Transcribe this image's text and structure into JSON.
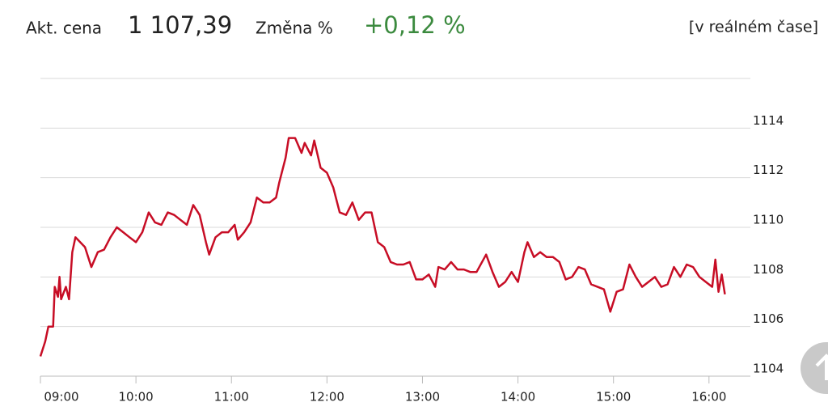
{
  "header": {
    "price_label": "Akt. cena",
    "price": "1 107,39",
    "change_label": "Změna %",
    "change": "+0,12 %",
    "realtime": "[v reálném čase]"
  },
  "chart_data": {
    "type": "line",
    "color": "#c70d25",
    "grid": true,
    "x": [
      540,
      543,
      545,
      548,
      549,
      551,
      552,
      553,
      556,
      558,
      560,
      562,
      565,
      568,
      572,
      576,
      580,
      584,
      588,
      592,
      596,
      600,
      604,
      608,
      612,
      616,
      620,
      624,
      628,
      632,
      636,
      640,
      644,
      646,
      650,
      654,
      658,
      662,
      664,
      668,
      672,
      676,
      680,
      684,
      688,
      690,
      694,
      696,
      700,
      704,
      706,
      710,
      712,
      716,
      720,
      724,
      728,
      732,
      736,
      740,
      744,
      748,
      752,
      756,
      760,
      764,
      768,
      772,
      776,
      780,
      784,
      788,
      790,
      794,
      798,
      802,
      806,
      810,
      814,
      820,
      824,
      828,
      832,
      836,
      840,
      844,
      846,
      850,
      854,
      858,
      862,
      866,
      870,
      874,
      878,
      882,
      886,
      890,
      894,
      898,
      902,
      906,
      910,
      914,
      918,
      922,
      926,
      930,
      934,
      938,
      942,
      946,
      950,
      954,
      958,
      962,
      964,
      966,
      968,
      970
    ],
    "values": [
      1104.8,
      1105.4,
      1106.0,
      1106.0,
      1107.6,
      1107.2,
      1108.0,
      1107.1,
      1107.6,
      1107.1,
      1109.0,
      1109.6,
      1109.4,
      1109.2,
      1108.4,
      1109.0,
      1109.1,
      1109.6,
      1110.0,
      1109.8,
      1109.6,
      1109.4,
      1109.8,
      1110.6,
      1110.2,
      1110.1,
      1110.6,
      1110.5,
      1110.3,
      1110.1,
      1110.9,
      1110.5,
      1109.4,
      1108.9,
      1109.6,
      1109.8,
      1109.8,
      1110.1,
      1109.5,
      1109.8,
      1110.2,
      1111.2,
      1111.0,
      1111.0,
      1111.2,
      1111.8,
      1112.8,
      1113.6,
      1113.6,
      1113.0,
      1113.4,
      1112.9,
      1113.5,
      1112.4,
      1112.2,
      1111.6,
      1110.6,
      1110.5,
      1111.0,
      1110.3,
      1110.6,
      1110.6,
      1109.4,
      1109.2,
      1108.6,
      1108.5,
      1108.5,
      1108.6,
      1107.9,
      1107.9,
      1108.1,
      1107.6,
      1108.4,
      1108.3,
      1108.6,
      1108.3,
      1108.3,
      1108.2,
      1108.2,
      1108.9,
      1108.2,
      1107.6,
      1107.8,
      1108.2,
      1107.8,
      1109.0,
      1109.4,
      1108.8,
      1109.0,
      1108.8,
      1108.8,
      1108.6,
      1107.9,
      1108.0,
      1108.4,
      1108.3,
      1107.7,
      1107.6,
      1107.5,
      1106.6,
      1107.4,
      1107.5,
      1108.5,
      1108.0,
      1107.6,
      1107.8,
      1108.0,
      1107.6,
      1107.7,
      1108.4,
      1108.0,
      1108.5,
      1108.4,
      1108.0,
      1107.8,
      1107.6,
      1108.7,
      1107.4,
      1108.1,
      1107.3
    ],
    "xlim": [
      540,
      986
    ],
    "xticks": [
      {
        "value": 540,
        "label": "09:00"
      },
      {
        "value": 600,
        "label": "10:00"
      },
      {
        "value": 660,
        "label": "11:00"
      },
      {
        "value": 720,
        "label": "12:00"
      },
      {
        "value": 780,
        "label": "13:00"
      },
      {
        "value": 840,
        "label": "14:00"
      },
      {
        "value": 900,
        "label": "15:00"
      },
      {
        "value": 960,
        "label": "16:00"
      }
    ],
    "ylim": [
      1104,
      1116
    ],
    "yticks": [
      1104,
      1106,
      1108,
      1110,
      1112,
      1114
    ]
  }
}
